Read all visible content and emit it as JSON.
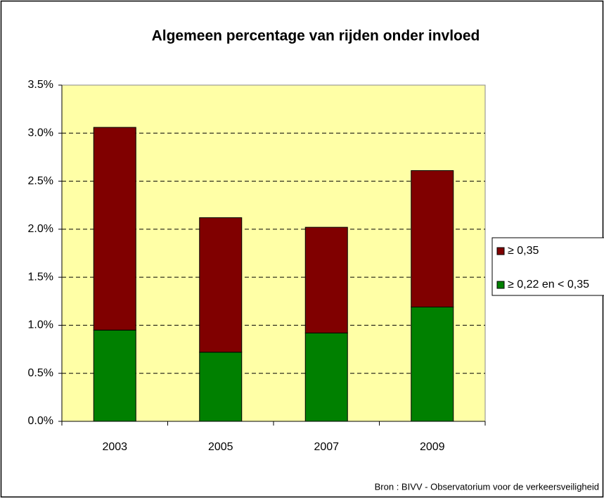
{
  "chart_data": {
    "type": "bar",
    "stacked": true,
    "title": "Algemeen percentage van rijden onder invloed",
    "categories": [
      "2003",
      "2005",
      "2007",
      "2009"
    ],
    "series": [
      {
        "name": "≥ 0,22 en < 0,35",
        "color": "#008000",
        "values": [
          0.95,
          0.72,
          0.92,
          1.19
        ]
      },
      {
        "name": "≥ 0,35",
        "color": "#800000",
        "values": [
          2.11,
          1.4,
          1.1,
          1.42
        ]
      }
    ],
    "ylim": [
      0,
      3.5
    ],
    "yticks": [
      {
        "value": 0,
        "label": "0.0%"
      },
      {
        "value": 0.5,
        "label": "0.5%"
      },
      {
        "value": 1,
        "label": "1.0%"
      },
      {
        "value": 1.5,
        "label": "1.5%"
      },
      {
        "value": 2,
        "label": "2.0%"
      },
      {
        "value": 2.5,
        "label": "2.5%"
      },
      {
        "value": 3,
        "label": "3.0%"
      },
      {
        "value": 3.5,
        "label": "3.5%"
      }
    ],
    "grid": true,
    "legend": "right",
    "annotation": "Bron : BIVV - Observatorium voor de verkeersveiligheid"
  }
}
